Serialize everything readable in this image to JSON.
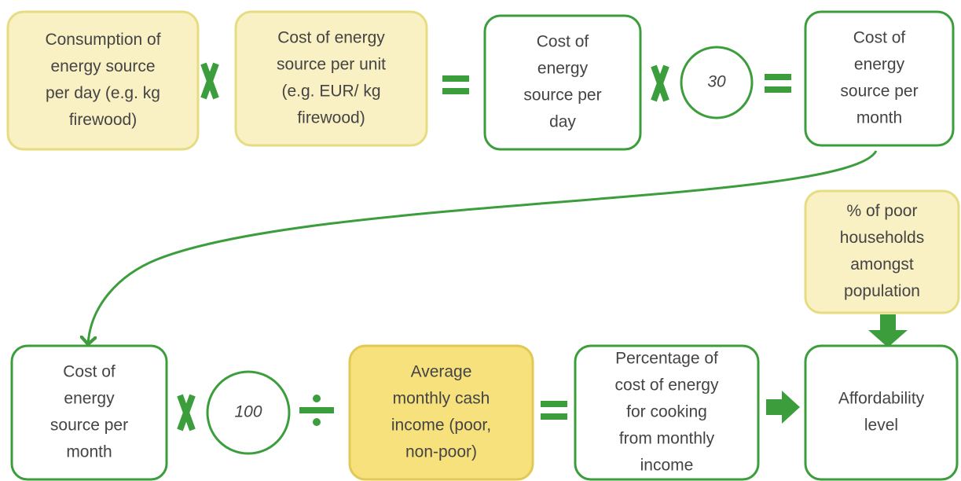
{
  "nodes": [
    {
      "lines": [
        "Consumption of",
        "energy source",
        "per day (e.g. kg",
        "firewood)"
      ]
    },
    {
      "lines": [
        "Cost of energy",
        "source per unit",
        "(e.g. EUR/ kg",
        "firewood)"
      ]
    },
    {
      "lines": [
        "Cost of",
        "energy",
        "source per",
        "day"
      ]
    },
    {
      "lines": [
        "30"
      ]
    },
    {
      "lines": [
        "Cost of",
        "energy",
        "source per",
        "month"
      ]
    },
    {
      "lines": [
        "% of poor",
        "households",
        "amongst",
        "population"
      ]
    },
    {
      "lines": [
        "Cost of",
        "energy",
        "source per",
        "month"
      ]
    },
    {
      "lines": [
        "100"
      ]
    },
    {
      "lines": [
        "Average",
        "monthly cash",
        "income (poor,",
        "non-poor)"
      ]
    },
    {
      "lines": [
        "Percentage of",
        "cost of energy",
        "for cooking",
        "from monthly",
        "income"
      ]
    },
    {
      "lines": [
        "Affordability",
        "level"
      ]
    }
  ]
}
